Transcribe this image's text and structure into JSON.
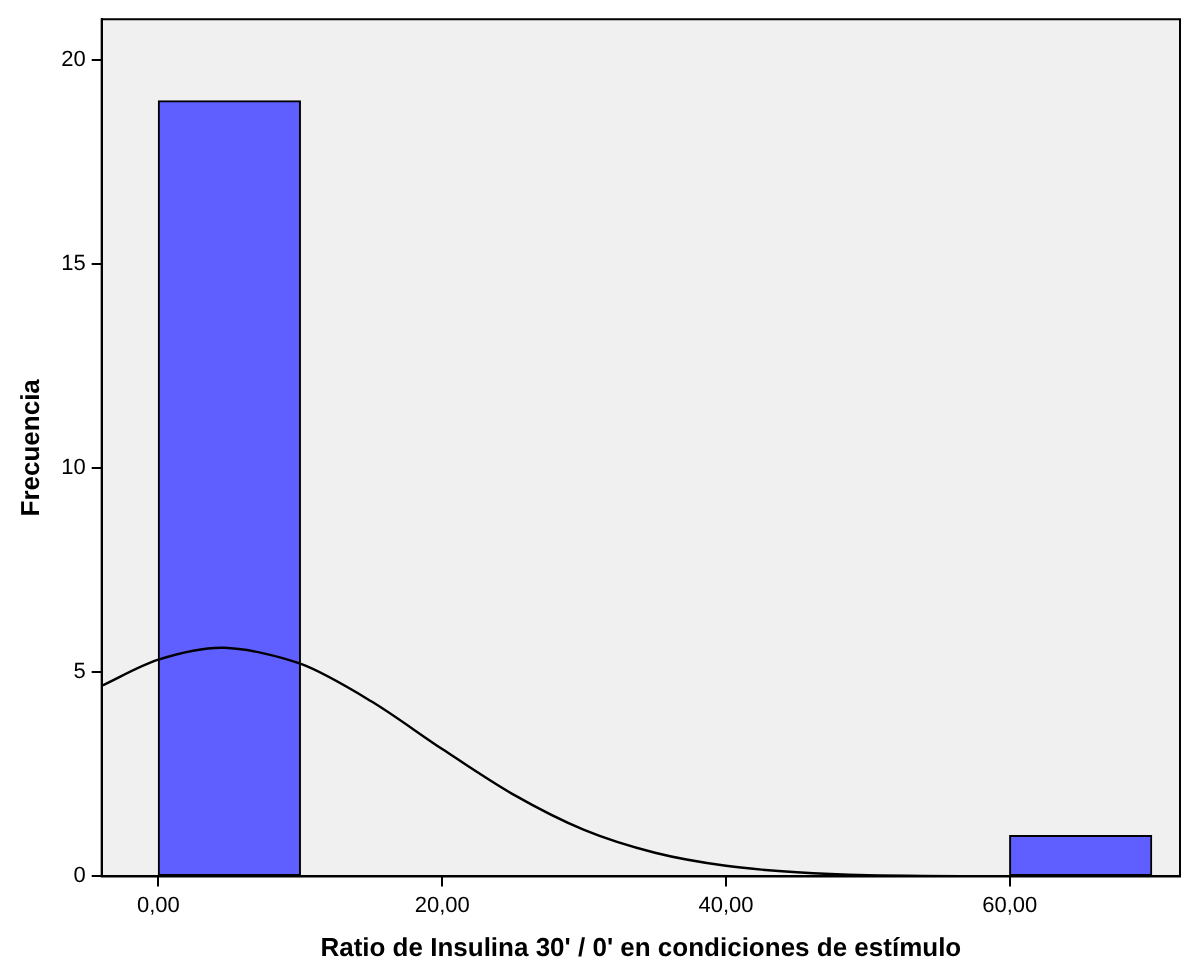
{
  "chart_data": {
    "type": "histogram",
    "xlabel": "Ratio de Insulina 30' / 0' en condiciones de estímulo",
    "ylabel": "Frecuencia",
    "bins": [
      0,
      10,
      20,
      30,
      40,
      50,
      60,
      70
    ],
    "values": [
      19,
      0,
      0,
      0,
      0,
      0,
      1
    ],
    "color": "#5f5fff",
    "series": [
      {
        "type": "line",
        "color": "#000000",
        "x": [
          -4,
          0,
          4.6,
          10,
          15,
          20,
          25,
          30,
          35,
          40,
          45,
          50,
          60,
          70
        ],
        "values": [
          4.67,
          5.31,
          5.6,
          5.21,
          4.29,
          3.12,
          2.01,
          1.14,
          0.58,
          0.26,
          0.1,
          0.03,
          0,
          0
        ]
      }
    ],
    "xlim": [
      -4,
      72
    ],
    "xticks": [
      {
        "value": 0,
        "label": "0,00"
      },
      {
        "value": 20,
        "label": "20,00"
      },
      {
        "value": 40,
        "label": "40,00"
      },
      {
        "value": 60,
        "label": "60,00"
      }
    ],
    "ylim": [
      0,
      21
    ],
    "yticks": [
      0,
      5,
      10,
      15,
      20
    ],
    "grid": false,
    "legend": false,
    "marker": "none",
    "line_style": "solid"
  }
}
